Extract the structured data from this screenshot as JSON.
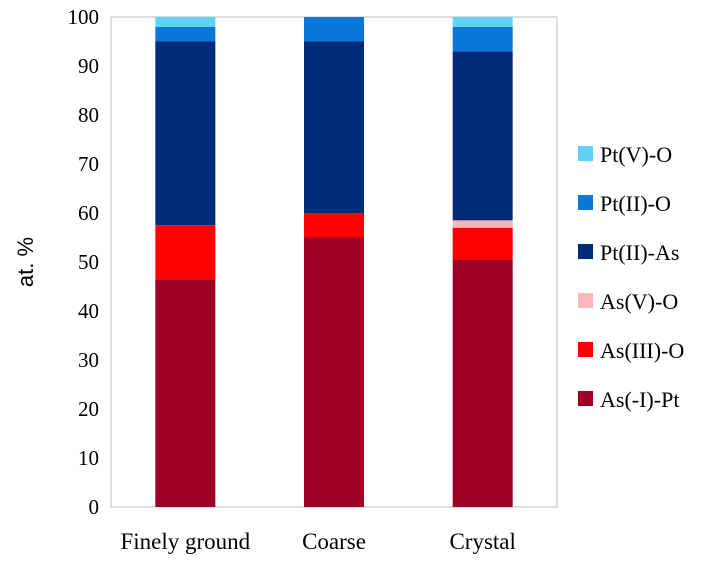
{
  "chart_data": {
    "type": "bar",
    "stacked": true,
    "categories": [
      "Finely ground",
      "Coarse",
      "Crystal"
    ],
    "ylabel": "at. %",
    "xlabel": "",
    "ylim": [
      0,
      100
    ],
    "yticks": [
      0,
      10,
      20,
      30,
      40,
      50,
      60,
      70,
      80,
      90,
      100
    ],
    "legend_position": "right",
    "series": [
      {
        "name": "As(-I)-Pt",
        "color": "#9e0023",
        "values": [
          46.5,
          55,
          50.5
        ]
      },
      {
        "name": "As(III)-O",
        "color": "#ff0000",
        "values": [
          11,
          5,
          6.5
        ]
      },
      {
        "name": "As(V)-O",
        "color": "#ffb6b9",
        "values": [
          0,
          0,
          1.5
        ]
      },
      {
        "name": "Pt(II)-As",
        "color": "#002a7a",
        "values": [
          37.5,
          35,
          34.5
        ]
      },
      {
        "name": "Pt(II)-O",
        "color": "#0a78d8",
        "values": [
          3,
          5,
          5
        ]
      },
      {
        "name": "Pt(V)-O",
        "color": "#5fd3f5",
        "values": [
          2,
          0,
          2
        ]
      }
    ]
  }
}
